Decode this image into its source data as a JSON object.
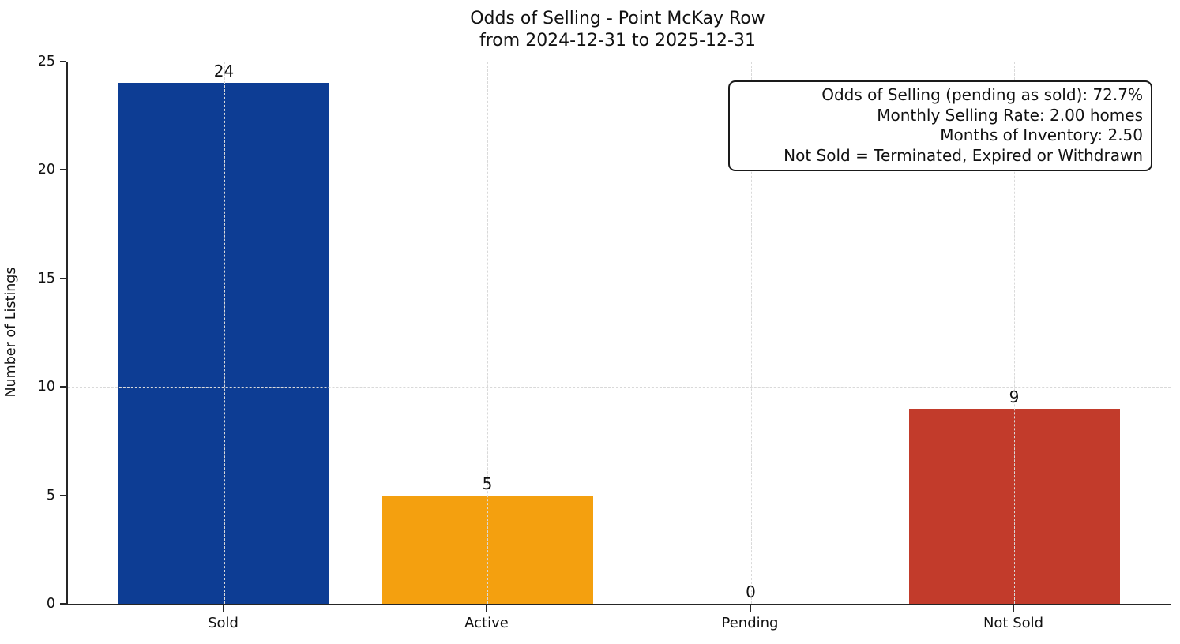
{
  "title": {
    "line1": "Odds of Selling - Point McKay Row",
    "line2": "from 2024-12-31 to 2025-12-31"
  },
  "y_axis_label": "Number of Listings",
  "annotation": {
    "lines": [
      "Odds of Selling (pending as sold): 72.7%",
      "Monthly Selling Rate: 2.00 homes",
      "Months of Inventory: 2.50",
      "Not Sold = Terminated, Expired or Withdrawn"
    ]
  },
  "chart_data": {
    "type": "bar",
    "title": "Odds of Selling - Point McKay Row\nfrom 2024-12-31 to 2025-12-31",
    "categories": [
      "Sold",
      "Active",
      "Pending",
      "Not Sold"
    ],
    "values": [
      24,
      5,
      0,
      9
    ],
    "bar_colors": [
      "#0d3d94",
      "#f4a00f",
      "#c8c8c8",
      "#c23b2b"
    ],
    "value_labels": [
      "24",
      "5",
      "0",
      "9"
    ],
    "xlabel": "",
    "ylabel": "Number of Listings",
    "ylim": [
      0,
      25
    ],
    "yticks": [
      0,
      5,
      10,
      15,
      20,
      25
    ],
    "grid": "dashed horizontal and vertical gridlines, drawn above bars",
    "gridline_color": "#d9d9d9",
    "spine_color": "#262626",
    "legend_position": "none",
    "annotation_box": {
      "position": "top-right",
      "lines": [
        "Odds of Selling (pending as sold): 72.7%",
        "Monthly Selling Rate: 2.00 homes",
        "Months of Inventory: 2.50",
        "Not Sold = Terminated, Expired or Withdrawn"
      ]
    }
  }
}
